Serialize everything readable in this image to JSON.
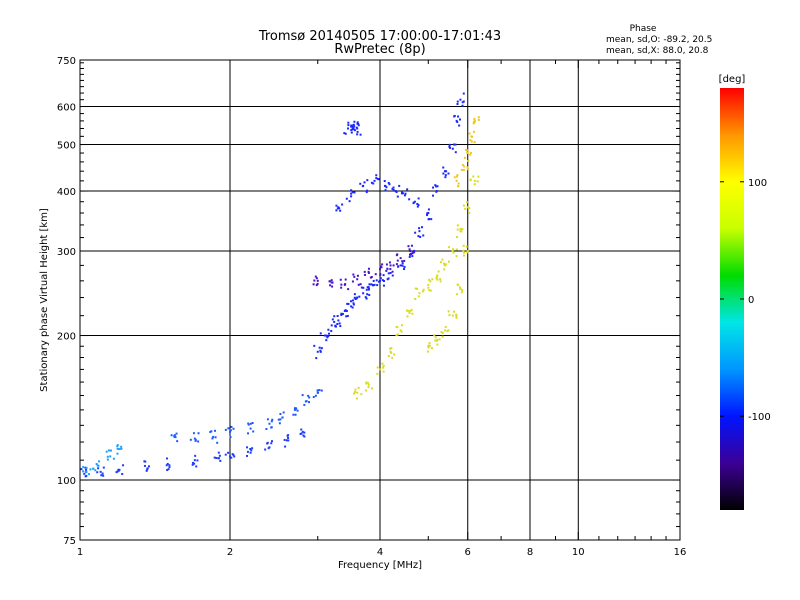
{
  "chart_data": {
    "type": "scatter",
    "title": "Tromsø 20140505 17:00:00-17:01:43",
    "subtitle": "RwPretec (8p)",
    "phase_header": "Phase",
    "phase_stats": [
      "mean, sd,O: -89.2, 20.5",
      "mean, sd,X: 88.0, 20.8"
    ],
    "xlabel": "Frequency [MHz]",
    "ylabel": "Stationary phase Virtual Height [km]",
    "x_scale": "log",
    "y_scale": "log",
    "xlim": [
      1,
      16
    ],
    "ylim": [
      75,
      750
    ],
    "x_major_ticks": [
      1,
      2,
      4,
      6,
      8,
      10,
      16
    ],
    "x_gridlines": [
      2,
      4,
      6,
      8,
      10
    ],
    "y_major_ticks": [
      75,
      100,
      200,
      300,
      400,
      500,
      600,
      750
    ],
    "y_gridlines": [
      100,
      200,
      300,
      400,
      500,
      600
    ],
    "grid": true,
    "colorbar": {
      "label": "[deg]",
      "min": -180,
      "max": 180,
      "ticks": [
        -100,
        0,
        100
      ],
      "colors": [
        "#000000",
        "#3c0096",
        "#0014ff",
        "#0096ff",
        "#00e6e6",
        "#00dc00",
        "#c8ff00",
        "#ffff00",
        "#ff9600",
        "#ff0000"
      ]
    },
    "traces": [
      {
        "mode": "O",
        "phase_deg": -100,
        "color": "#1e3cff",
        "x": [
          1.02,
          1.1,
          1.2,
          1.35,
          1.5,
          1.7,
          1.9,
          2.0,
          2.2,
          2.4,
          2.6,
          2.8
        ],
        "y": [
          103,
          104,
          105,
          107,
          108,
          110,
          111,
          112,
          114,
          117,
          121,
          126
        ]
      },
      {
        "mode": "O",
        "phase_deg": -75,
        "color": "#1ea0ff",
        "x": [
          1.03,
          1.08,
          1.15,
          1.2
        ],
        "y": [
          104,
          108,
          112,
          116
        ]
      },
      {
        "mode": "O",
        "phase_deg": -90,
        "color": "#1e5aff",
        "x": [
          1.55,
          1.7,
          1.85,
          2.0,
          2.2,
          2.4,
          2.55,
          2.7,
          2.85,
          3.0
        ],
        "y": [
          124,
          122,
          123,
          126,
          128,
          131,
          135,
          140,
          146,
          152
        ]
      },
      {
        "mode": "O",
        "phase_deg": -100,
        "color": "#1a28ff",
        "x": [
          3.0,
          3.1,
          3.2,
          3.3,
          3.4,
          3.5,
          3.6,
          3.7,
          3.8,
          3.9,
          4.0,
          4.2,
          4.4,
          4.6,
          4.8,
          5.0,
          5.2,
          5.4,
          5.6,
          5.7,
          5.8
        ],
        "y": [
          185,
          200,
          210,
          215,
          225,
          230,
          240,
          245,
          250,
          255,
          260,
          270,
          280,
          300,
          330,
          360,
          400,
          440,
          490,
          560,
          620
        ]
      },
      {
        "mode": "O",
        "phase_deg": -100,
        "color": "#1a28ff",
        "x": [
          3.3,
          3.5,
          3.7,
          3.9,
          4.1,
          4.3,
          4.5,
          4.7
        ],
        "y": [
          370,
          390,
          410,
          420,
          410,
          400,
          395,
          380
        ]
      },
      {
        "mode": "O",
        "phase_deg": -100,
        "color": "#1a28ff",
        "x": [
          3.45,
          3.5,
          3.55,
          3.6
        ],
        "y": [
          540,
          545,
          545,
          540
        ]
      },
      {
        "mode": "O",
        "phase_deg": -130,
        "color": "#4b14c8",
        "x": [
          3.0,
          3.2,
          3.4,
          3.6,
          3.8,
          4.0,
          4.2,
          4.4,
          4.6
        ],
        "y": [
          260,
          258,
          255,
          262,
          270,
          275,
          280,
          290,
          300
        ]
      },
      {
        "mode": "X",
        "phase_deg": 95,
        "color": "#dcdc1e",
        "x": [
          3.6,
          3.8,
          4.0,
          4.2,
          4.4,
          4.6,
          4.8,
          5.0,
          5.2,
          5.4,
          5.6,
          5.8,
          6.0,
          6.2
        ],
        "y": [
          152,
          158,
          170,
          185,
          205,
          225,
          245,
          255,
          265,
          280,
          300,
          330,
          370,
          420
        ]
      },
      {
        "mode": "X",
        "phase_deg": 95,
        "color": "#dcdc1e",
        "x": [
          5.0,
          5.2,
          5.4,
          5.6,
          5.8,
          6.0
        ],
        "y": [
          190,
          195,
          205,
          220,
          250,
          300
        ]
      },
      {
        "mode": "X",
        "phase_deg": 110,
        "color": "#f0c81e",
        "x": [
          5.7,
          5.9,
          6.0,
          6.1,
          6.2
        ],
        "y": [
          420,
          450,
          480,
          520,
          560
        ]
      }
    ]
  }
}
